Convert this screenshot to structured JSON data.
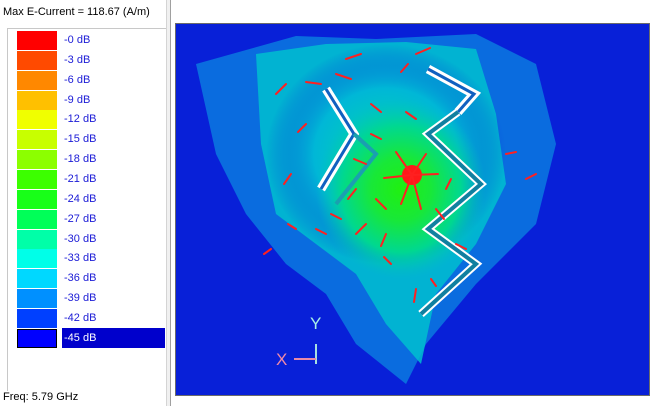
{
  "header": {
    "max_current": "Max E-Current = 118.67 (A/m)"
  },
  "legend": [
    {
      "label": "-0 dB",
      "color": "#ff0000"
    },
    {
      "label": "-3 dB",
      "color": "#ff4a00"
    },
    {
      "label": "-6 dB",
      "color": "#ff8800"
    },
    {
      "label": "-9 dB",
      "color": "#ffc000"
    },
    {
      "label": "-12 dB",
      "color": "#f0ff00"
    },
    {
      "label": "-15 dB",
      "color": "#c8ff00"
    },
    {
      "label": "-18 dB",
      "color": "#8cff00"
    },
    {
      "label": "-21 dB",
      "color": "#3cff00"
    },
    {
      "label": "-24 dB",
      "color": "#18ff18"
    },
    {
      "label": "-27 dB",
      "color": "#00ff58"
    },
    {
      "label": "-30 dB",
      "color": "#00ffa8"
    },
    {
      "label": "-33 dB",
      "color": "#00ffe8"
    },
    {
      "label": "-36 dB",
      "color": "#00d8ff"
    },
    {
      "label": "-39 dB",
      "color": "#0090ff"
    },
    {
      "label": "-42 dB",
      "color": "#0040ff"
    },
    {
      "label": "-45 dB",
      "color": "#0000ff"
    }
  ],
  "selected_index": 15,
  "footer": {
    "frequency": "Freq: 5.79 GHz"
  },
  "viewport": {
    "axis_y": "Y",
    "axis_x": "X",
    "background_color": "#0820d8"
  }
}
